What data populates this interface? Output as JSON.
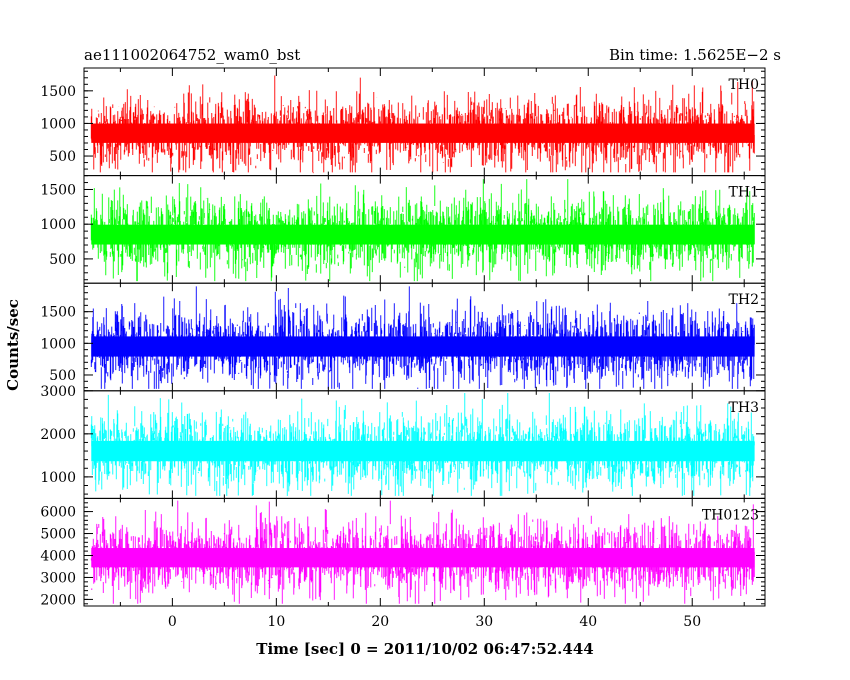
{
  "chart_data": {
    "type": "line",
    "title_left": "ae111002064752_wam0_bst",
    "title_right": "Bin time: 1.5625E−2 s",
    "xlabel": "Time [sec] 0 = 2011/10/02 06:47:52.444",
    "ylabel": "Counts/sec",
    "x_range": [
      -8.5,
      57
    ],
    "x_ticks": [
      0,
      10,
      20,
      30,
      40,
      50
    ],
    "x_tick_labels": [
      "0",
      "10",
      "20",
      "30",
      "40",
      "50"
    ],
    "data_x_range": [
      -7.8,
      56
    ],
    "bin_time": 0.015625,
    "grid": false,
    "panels": [
      {
        "name": "TH0",
        "color": "#ff0000",
        "ylim": [
          200,
          1850
        ],
        "yticks": [
          500,
          1000,
          1500
        ],
        "ytick_labels": [
          "500",
          "1000",
          "1500"
        ],
        "mean": 850,
        "std": 270,
        "min": 250,
        "max": 1800
      },
      {
        "name": "TH1",
        "color": "#00ff00",
        "ylim": [
          150,
          1700
        ],
        "yticks": [
          500,
          1000,
          1500
        ],
        "ytick_labels": [
          "500",
          "1000",
          "1500"
        ],
        "mean": 850,
        "std": 260,
        "min": 180,
        "max": 1650
      },
      {
        "name": "TH2",
        "color": "#0000ff",
        "ylim": [
          250,
          1950
        ],
        "yticks": [
          500,
          1000,
          1500
        ],
        "ytick_labels": [
          "500",
          "1000",
          "1500"
        ],
        "mean": 950,
        "std": 290,
        "min": 280,
        "max": 1900
      },
      {
        "name": "TH3",
        "color": "#00ffff",
        "ylim": [
          500,
          3000
        ],
        "yticks": [
          1000,
          2000,
          3000
        ],
        "ytick_labels": [
          "1000",
          "2000",
          "3000"
        ],
        "mean": 1600,
        "std": 430,
        "min": 560,
        "max": 2950
      },
      {
        "name": "TH0123",
        "color": "#ff00ff",
        "ylim": [
          1700,
          6600
        ],
        "yticks": [
          2000,
          3000,
          4000,
          5000,
          6000
        ],
        "ytick_labels": [
          "2000",
          "3000",
          "4000",
          "5000",
          "6000"
        ],
        "mean": 3900,
        "std": 800,
        "min": 1800,
        "max": 6500
      }
    ]
  }
}
